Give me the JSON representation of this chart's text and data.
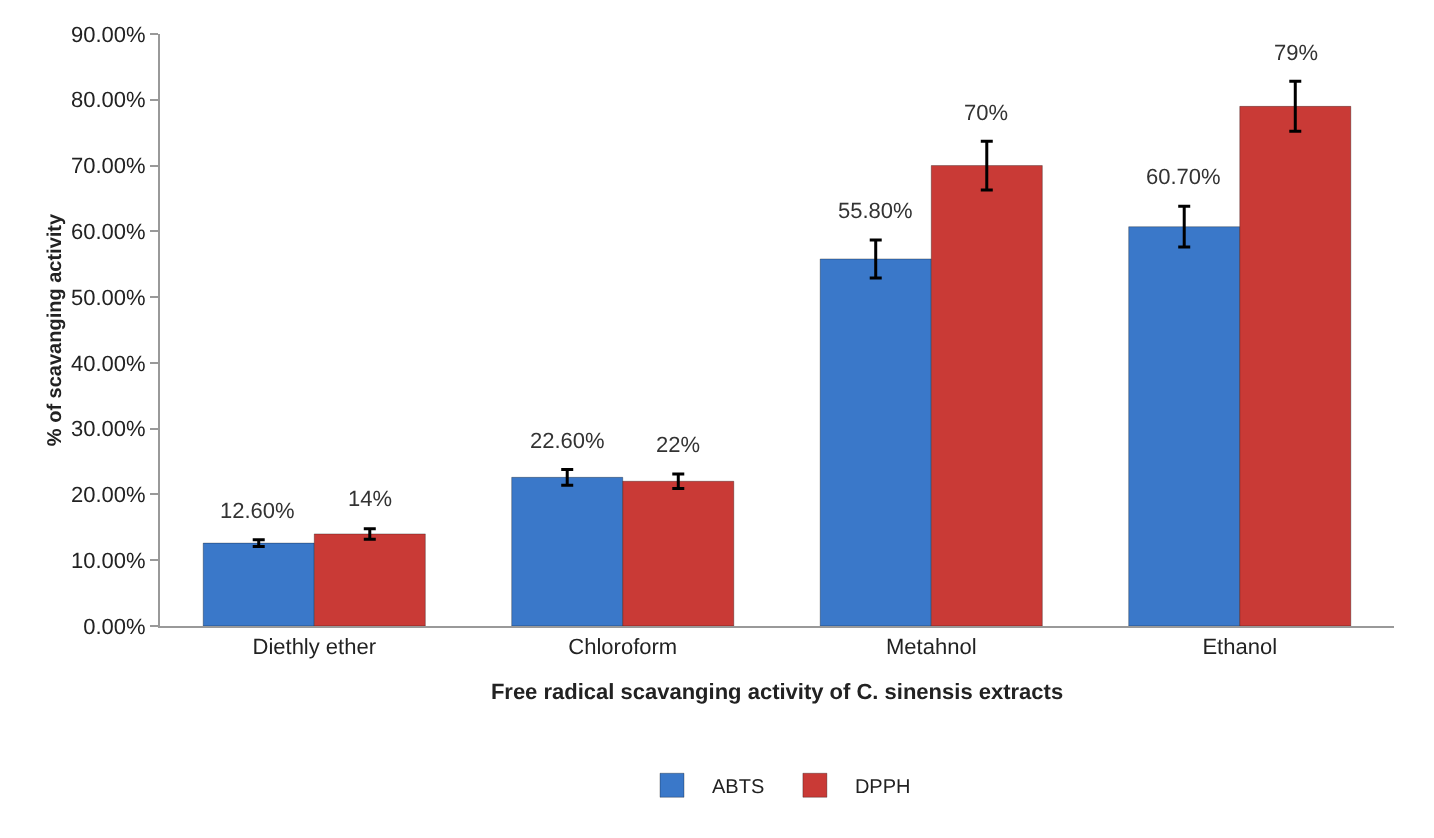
{
  "chart_data": {
    "type": "bar",
    "xlabel": "Free radical scavanging activity of C. sinensis extracts",
    "ylabel": "% of scavanging activity",
    "categories": [
      "Diethly ether",
      "Chloroform",
      "Metahnol",
      "Ethanol"
    ],
    "series": [
      {
        "name": "ABTS",
        "color": "#3a78c9",
        "values": [
          12.6,
          22.6,
          55.8,
          60.7
        ],
        "errors": [
          0.5,
          1.2,
          2.9,
          3.1
        ],
        "value_labels": [
          "12.60%",
          "22.60%",
          "55.80%",
          "60.70%"
        ]
      },
      {
        "name": "DPPH",
        "color": "#c93a36",
        "values": [
          14,
          22,
          70,
          79
        ],
        "errors": [
          0.8,
          1.1,
          3.7,
          3.8
        ],
        "value_labels": [
          "14%",
          "22%",
          "70%",
          "79%"
        ]
      }
    ],
    "ylim": [
      0,
      90
    ],
    "yticks": [
      {
        "value": 0,
        "label": "0.00%"
      },
      {
        "value": 10,
        "label": "10.00%"
      },
      {
        "value": 20,
        "label": "20.00%"
      },
      {
        "value": 30,
        "label": "30.00%"
      },
      {
        "value": 40,
        "label": "40.00%"
      },
      {
        "value": 50,
        "label": "50.00%"
      },
      {
        "value": 60,
        "label": "60.00%"
      },
      {
        "value": 70,
        "label": "70.00%"
      },
      {
        "value": 80,
        "label": "80.00%"
      },
      {
        "value": 90,
        "label": "90.00%"
      }
    ],
    "grid": false,
    "legend": "bottom"
  }
}
